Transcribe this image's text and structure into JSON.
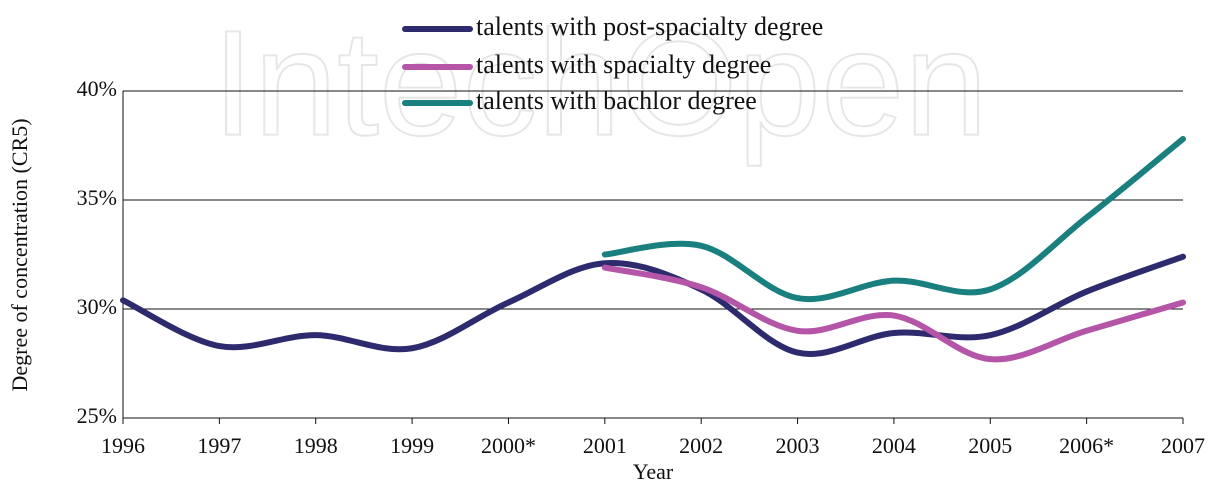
{
  "watermark": "IntechOpen",
  "chart_data": {
    "type": "line",
    "x_label": "Year",
    "y_label": "Degree of concentration (CR5)",
    "categories": [
      "1996",
      "1997",
      "1998",
      "1999",
      "2000*",
      "2001",
      "2002",
      "2003",
      "2004",
      "2005",
      "2006*",
      "2007"
    ],
    "series": [
      {
        "name": "talents with post-spacialty degree",
        "color": "#2e2a6e",
        "values": [
          30.4,
          28.3,
          28.8,
          28.2,
          30.3,
          32.1,
          30.9,
          28.0,
          28.9,
          28.8,
          30.8,
          32.4
        ]
      },
      {
        "name": "talents with spacialty degree",
        "color": "#b455a8",
        "values": [
          null,
          null,
          null,
          null,
          null,
          31.9,
          31.0,
          29.0,
          29.7,
          27.7,
          29.0,
          30.3
        ]
      },
      {
        "name": "talents with bachlor degree",
        "color": "#19807f",
        "values": [
          null,
          null,
          null,
          null,
          null,
          32.5,
          32.9,
          30.5,
          31.3,
          30.9,
          34.2,
          37.8
        ]
      }
    ],
    "ylim": [
      25,
      40
    ],
    "yticks": [
      {
        "value": 25,
        "label": "25%"
      },
      {
        "value": 30,
        "label": "30%"
      },
      {
        "value": 35,
        "label": "35%"
      },
      {
        "value": 40,
        "label": "40%"
      }
    ],
    "grid": true,
    "smooth": true
  }
}
